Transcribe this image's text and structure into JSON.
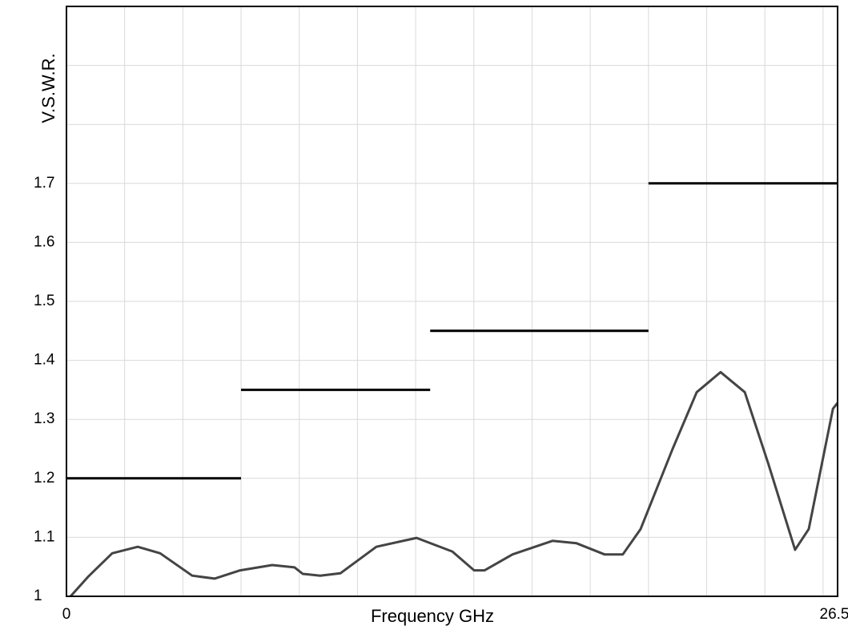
{
  "chart_data": {
    "type": "line",
    "x_label": "Frequency GHz",
    "y_label": "V.S.W.R.",
    "xlim": [
      0,
      26.5
    ],
    "ylim": [
      1,
      2
    ],
    "xticks": [
      0,
      26.5
    ],
    "yticks": [
      1,
      1.1,
      1.2,
      1.3,
      1.4,
      1.5,
      1.6,
      1.7
    ],
    "xgrid": [
      2,
      4,
      6,
      8,
      10,
      12,
      14,
      16,
      18,
      20,
      22,
      24,
      26
    ],
    "ygrid": [
      1.8,
      1.9
    ],
    "grid": true,
    "series": [
      {
        "color": "#444444",
        "x": [
          0.14,
          0.74,
          1.57,
          2.45,
          3.22,
          4.32,
          5.09,
          5.97,
          7.07,
          7.84,
          8.12,
          8.72,
          9.41,
          10.65,
          12.03,
          13.26,
          14.01,
          14.37,
          15.33,
          16.7,
          17.53,
          18.49,
          19.12,
          19.73,
          20.83,
          21.66,
          22.48,
          23.31,
          24.13,
          25.04,
          25.51,
          26.34,
          26.5
        ],
        "values": [
          1.0,
          1.033,
          1.073,
          1.084,
          1.073,
          1.035,
          1.03,
          1.044,
          1.053,
          1.049,
          1.038,
          1.035,
          1.039,
          1.084,
          1.099,
          1.076,
          1.044,
          1.044,
          1.071,
          1.094,
          1.09,
          1.071,
          1.071,
          1.114,
          1.25,
          1.346,
          1.38,
          1.346,
          1.223,
          1.079,
          1.114,
          1.318,
          1.328
        ]
      },
      {
        "color": "#000000",
        "x": [
          0,
          6
        ],
        "values": [
          1.2,
          1.2
        ]
      },
      {
        "color": "#000000",
        "x": [
          6,
          12.5
        ],
        "values": [
          1.35,
          1.35
        ]
      },
      {
        "color": "#000000",
        "x": [
          12.5,
          20
        ],
        "values": [
          1.45,
          1.45
        ]
      },
      {
        "color": "#000000",
        "x": [
          20,
          26.5
        ],
        "values": [
          1.7,
          1.7
        ]
      }
    ]
  }
}
